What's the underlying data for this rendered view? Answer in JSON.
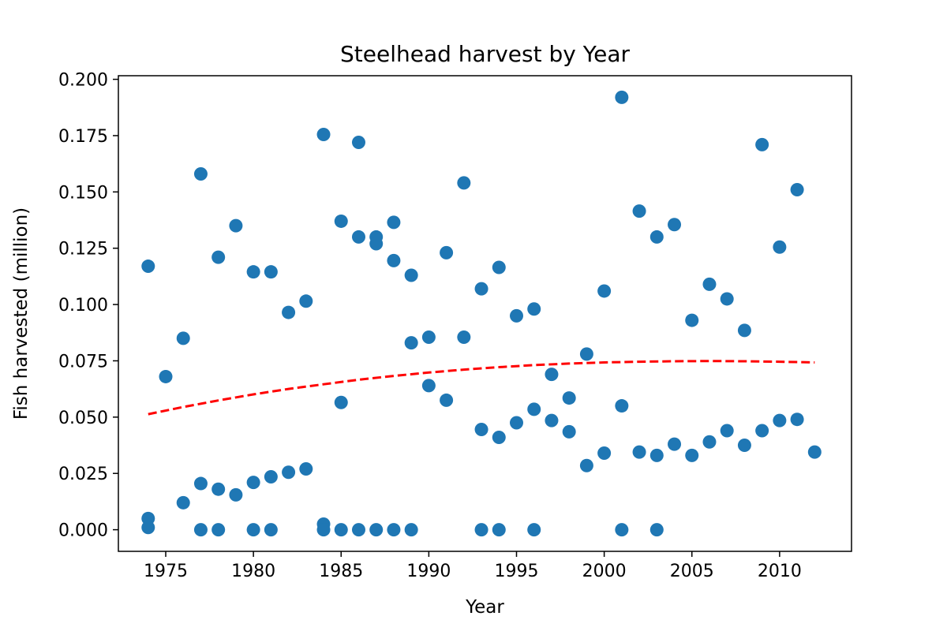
{
  "chart_data": {
    "type": "scatter",
    "title": "Steelhead harvest by Year",
    "xlabel": "Year",
    "ylabel": "Fish harvested (million)",
    "xlim": [
      1972.3,
      2014.1
    ],
    "ylim": [
      -0.0096,
      0.2016
    ],
    "xticks": [
      "1975",
      "1980",
      "1985",
      "1990",
      "1995",
      "2000",
      "2005",
      "2010"
    ],
    "yticks": [
      "0.000",
      "0.025",
      "0.050",
      "0.075",
      "0.100",
      "0.125",
      "0.150",
      "0.175",
      "0.200"
    ],
    "grid": false,
    "legend": "none",
    "colors": {
      "points": "#1f77b4",
      "trend": "#ff0000"
    },
    "series": [
      {
        "x": [
          1974,
          1974,
          1974,
          1975,
          1976,
          1976,
          1977,
          1977,
          1977,
          1978,
          1978,
          1978,
          1979,
          1979,
          1980,
          1980,
          1980,
          1981,
          1981,
          1981,
          1982,
          1982,
          1983,
          1983,
          1984,
          1984,
          1984,
          1985,
          1985,
          1985,
          1986,
          1986,
          1986,
          1987,
          1987,
          1987,
          1988,
          1988,
          1988,
          1989,
          1989,
          1989,
          1990,
          1990,
          1991,
          1991,
          1992,
          1992,
          1993,
          1993,
          1993,
          1994,
          1994,
          1994,
          1995,
          1995,
          1996,
          1996,
          1996,
          1997,
          1997,
          1998,
          1998,
          1999,
          1999,
          2000,
          2000,
          2001,
          2001,
          2001,
          2002,
          2002,
          2003,
          2003,
          2003,
          2004,
          2004,
          2005,
          2005,
          2006,
          2006,
          2007,
          2007,
          2008,
          2008,
          2009,
          2009,
          2010,
          2010,
          2011,
          2011,
          2012
        ],
        "values": [
          0.117,
          0.005,
          0.001,
          0.068,
          0.085,
          0.012,
          0.158,
          0.0205,
          0.0,
          0.121,
          0.018,
          0.0,
          0.135,
          0.0155,
          0.1145,
          0.021,
          0.0,
          0.1145,
          0.0235,
          0.0,
          0.0965,
          0.0255,
          0.1015,
          0.027,
          0.1755,
          0.0025,
          0.0,
          0.137,
          0.0565,
          0.0,
          0.172,
          0.13,
          0.0,
          0.13,
          0.127,
          0.0,
          0.1365,
          0.1195,
          0.0,
          0.113,
          0.083,
          0.0,
          0.0855,
          0.064,
          0.123,
          0.0575,
          0.154,
          0.0855,
          0.107,
          0.0445,
          0.0,
          0.1165,
          0.041,
          0.0,
          0.095,
          0.0475,
          0.098,
          0.0535,
          0.0,
          0.069,
          0.0485,
          0.0585,
          0.0435,
          0.078,
          0.0285,
          0.106,
          0.034,
          0.192,
          0.055,
          0.0,
          0.1415,
          0.0345,
          0.13,
          0.033,
          0.0,
          0.1355,
          0.038,
          0.093,
          0.033,
          0.109,
          0.039,
          0.1025,
          0.044,
          0.0885,
          0.0375,
          0.171,
          0.044,
          0.1255,
          0.0485,
          0.151,
          0.049,
          0.0345
        ]
      },
      {
        "x": [
          1974,
          1976,
          1978,
          1980,
          1982,
          1984,
          1986,
          1988,
          1990,
          1992,
          1994,
          1996,
          1998,
          2000,
          2002,
          2004,
          2006,
          2008,
          2010,
          2012
        ],
        "values": [
          0.0513,
          0.0545,
          0.0574,
          0.0601,
          0.0625,
          0.0646,
          0.0666,
          0.0683,
          0.0698,
          0.0711,
          0.0722,
          0.0731,
          0.0738,
          0.0743,
          0.0746,
          0.0748,
          0.0749,
          0.0748,
          0.0746,
          0.0743
        ]
      }
    ]
  }
}
